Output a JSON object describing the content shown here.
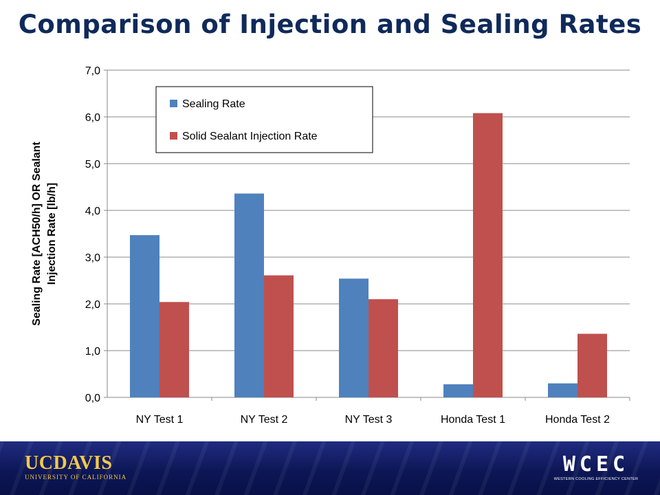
{
  "slide": {
    "title": "Comparison of Injection and Sealing Rates"
  },
  "chart_data": {
    "type": "bar",
    "title": "",
    "xlabel": "",
    "ylabel_lines": [
      "Sealing Rate [ACH50/h] OR Sealant",
      "Injection Rate [lb/h]"
    ],
    "categories": [
      "NY Test 1",
      "NY Test 2",
      "NY Test 3",
      "Honda Test 1",
      "Honda Test 2"
    ],
    "series": [
      {
        "name": "Sealing Rate",
        "color": "#4f81bd",
        "values": [
          3.47,
          4.36,
          2.54,
          0.28,
          0.3
        ]
      },
      {
        "name": "Solid Sealant Injection Rate",
        "color": "#c0504d",
        "values": [
          2.04,
          2.61,
          2.1,
          6.08,
          1.36
        ]
      }
    ],
    "ylim": [
      0,
      7
    ],
    "yticks": [
      0,
      1,
      2,
      3,
      4,
      5,
      6,
      7
    ],
    "ytick_labels": [
      "0,0",
      "1,0",
      "2,0",
      "3,0",
      "4,0",
      "5,0",
      "6,0",
      "7,0"
    ],
    "grid": true,
    "legend_position": "top-left inside plot"
  },
  "footer": {
    "left_logo": {
      "main": "UCDAVIS",
      "sub": "UNIVERSITY OF CALIFORNIA"
    },
    "right_logo": {
      "main": "WCEC",
      "sub": "WESTERN COOLING EFFICIENCY CENTER"
    }
  }
}
